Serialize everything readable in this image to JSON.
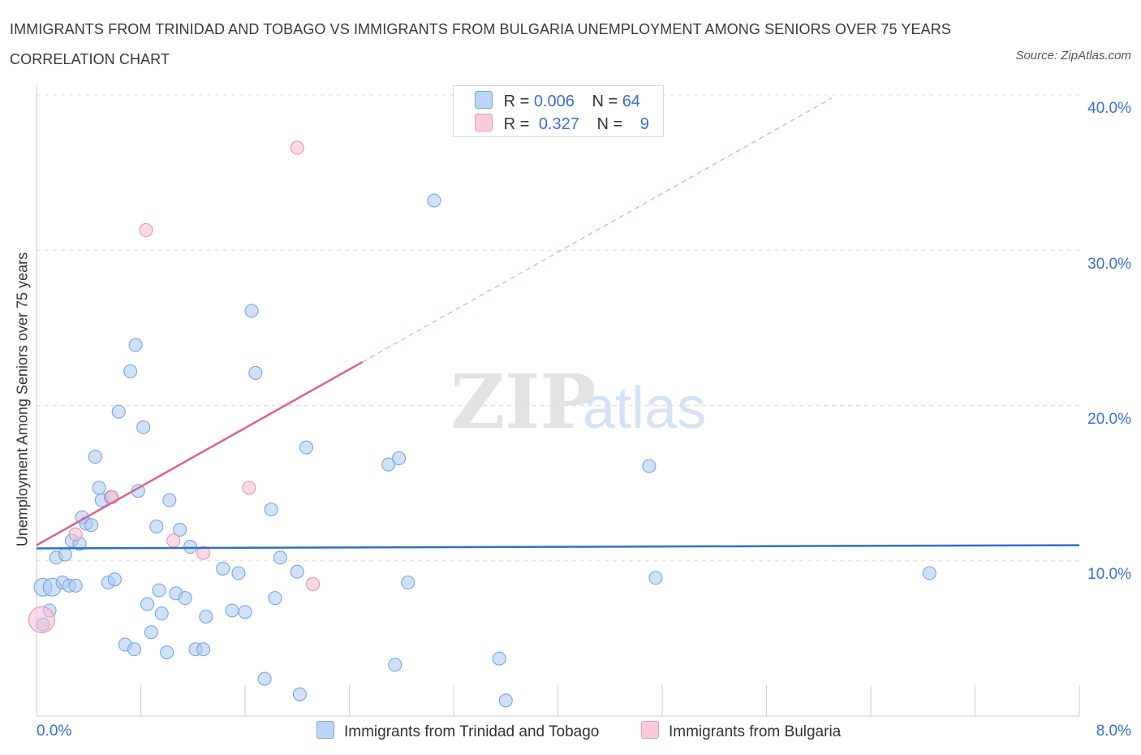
{
  "chart_data": {
    "type": "scatter",
    "title": "IMMIGRANTS FROM TRINIDAD AND TOBAGO VS IMMIGRANTS FROM BULGARIA UNEMPLOYMENT AMONG SENIORS OVER 75 YEARS CORRELATION CHART",
    "source": "Source: ZipAtlas.com",
    "ylabel": "Unemployment Among Seniors over 75 years",
    "xlabel": "",
    "xlim": [
      0,
      8
    ],
    "ylim": [
      0,
      40
    ],
    "x_tick_labels": [
      "0.0%",
      "8.0%"
    ],
    "y_tick_labels": [
      "10.0%",
      "20.0%",
      "30.0%",
      "40.0%"
    ],
    "y_tick_values": [
      10,
      20,
      30,
      40
    ],
    "legend": {
      "r_label": "R =",
      "n_label": "N =",
      "entries": [
        {
          "r": "0.006",
          "n": "64"
        },
        {
          "r": "0.327",
          "n": "9"
        }
      ]
    },
    "series": [
      {
        "name": "Immigrants from Trinidad and Tobago",
        "color": "#a9c8f2",
        "stroke": "#6e9fe0",
        "trend_color": "#2f6fcc",
        "trend": {
          "x0": 0,
          "y0": 10.8,
          "x1": 8,
          "y1": 11.0
        },
        "points": [
          [
            0.05,
            8.3
          ],
          [
            0.1,
            6.8
          ],
          [
            0.05,
            5.9
          ],
          [
            0.12,
            8.3
          ],
          [
            0.15,
            10.2
          ],
          [
            0.2,
            8.6
          ],
          [
            0.22,
            10.4
          ],
          [
            0.25,
            8.4
          ],
          [
            0.27,
            11.3
          ],
          [
            0.3,
            8.4
          ],
          [
            0.33,
            11.1
          ],
          [
            0.35,
            12.8
          ],
          [
            0.38,
            12.4
          ],
          [
            0.42,
            12.3
          ],
          [
            0.45,
            16.7
          ],
          [
            0.48,
            14.7
          ],
          [
            0.5,
            13.9
          ],
          [
            0.55,
            8.6
          ],
          [
            0.57,
            14.1
          ],
          [
            0.6,
            8.8
          ],
          [
            0.63,
            19.6
          ],
          [
            0.68,
            4.6
          ],
          [
            0.72,
            22.2
          ],
          [
            0.75,
            4.3
          ],
          [
            0.76,
            23.9
          ],
          [
            0.78,
            14.5
          ],
          [
            0.82,
            18.6
          ],
          [
            0.85,
            7.2
          ],
          [
            0.88,
            5.4
          ],
          [
            0.92,
            12.2
          ],
          [
            0.94,
            8.1
          ],
          [
            0.96,
            6.6
          ],
          [
            1.0,
            4.1
          ],
          [
            1.02,
            13.9
          ],
          [
            1.07,
            7.9
          ],
          [
            1.1,
            12.0
          ],
          [
            1.14,
            7.6
          ],
          [
            1.18,
            10.9
          ],
          [
            1.22,
            4.3
          ],
          [
            1.28,
            4.3
          ],
          [
            1.3,
            6.4
          ],
          [
            1.43,
            9.5
          ],
          [
            1.5,
            6.8
          ],
          [
            1.55,
            9.2
          ],
          [
            1.6,
            6.7
          ],
          [
            1.65,
            26.1
          ],
          [
            1.68,
            22.1
          ],
          [
            1.75,
            2.4
          ],
          [
            1.8,
            13.3
          ],
          [
            1.83,
            7.6
          ],
          [
            1.87,
            10.2
          ],
          [
            2.0,
            9.3
          ],
          [
            2.02,
            1.4
          ],
          [
            2.07,
            17.3
          ],
          [
            2.7,
            16.2
          ],
          [
            2.75,
            3.3
          ],
          [
            2.78,
            16.6
          ],
          [
            2.85,
            8.6
          ],
          [
            3.05,
            33.2
          ],
          [
            3.55,
            3.7
          ],
          [
            3.6,
            1.0
          ],
          [
            4.7,
            16.1
          ],
          [
            4.75,
            8.9
          ],
          [
            6.85,
            9.2
          ]
        ]
      },
      {
        "name": "Immigrants from Bulgaria",
        "color": "#f6bdd0",
        "stroke": "#e88aa8",
        "trend_color": "#e0608a",
        "trend": {
          "x0": 0,
          "y0": 11.0,
          "x1": 2.5,
          "y1": 22.8,
          "dash_to_x": 6.1
        },
        "points": [
          [
            0.04,
            6.2
          ],
          [
            0.3,
            11.7
          ],
          [
            0.58,
            14.1
          ],
          [
            0.84,
            31.3
          ],
          [
            1.05,
            11.3
          ],
          [
            1.28,
            10.5
          ],
          [
            1.63,
            14.7
          ],
          [
            2.0,
            36.6
          ],
          [
            2.12,
            8.5
          ]
        ]
      }
    ],
    "watermark": {
      "zip": "ZIP",
      "atlas": "atlas"
    }
  }
}
